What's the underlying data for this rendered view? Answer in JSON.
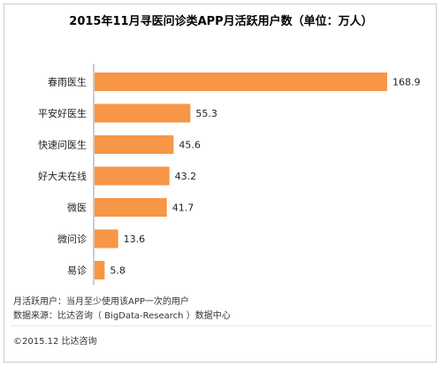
{
  "chart_data": {
    "type": "bar",
    "orientation": "horizontal",
    "title": "2015年11月寻医问诊类APP月活跃用户数（单位：万人）",
    "categories": [
      "春雨医生",
      "平安好医生",
      "快速问医生",
      "好大夫在线",
      "微医",
      "微问诊",
      "易诊"
    ],
    "values": [
      168.9,
      55.3,
      45.6,
      43.2,
      41.7,
      13.6,
      5.8
    ],
    "value_labels": [
      "168.9",
      "55.3",
      "45.6",
      "43.2",
      "41.7",
      "13.6",
      "5.8"
    ],
    "xlim": [
      0,
      168.9
    ],
    "grid": false,
    "bar_color": "#f79646"
  },
  "notes": {
    "definition": "月活跃用户：当月至少使用该APP一次的用户",
    "source": "数据来源：比达咨询（ BigData-Research ）数据中心"
  },
  "footer": {
    "copyright": "©2015.12  比达咨询"
  }
}
